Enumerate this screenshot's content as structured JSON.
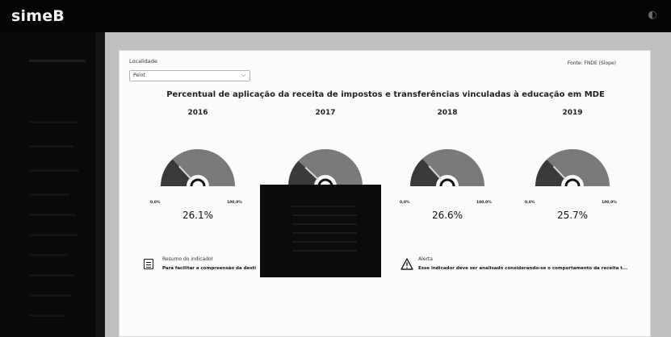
{
  "app": {
    "logo": "simeB",
    "toggle_icon": "half-moon-icon"
  },
  "sidebar": {
    "items": [
      {
        "label": ""
      },
      {
        "label": ""
      },
      {
        "label": ""
      },
      {
        "label": ""
      },
      {
        "label": ""
      },
      {
        "label": ""
      },
      {
        "label": ""
      },
      {
        "label": ""
      },
      {
        "label": ""
      },
      {
        "label": ""
      }
    ]
  },
  "filter": {
    "label": "Localidade",
    "selected": "Pelot"
  },
  "source": "Fonte: FNDE (Siope)",
  "title": "Percentual de aplicação da receita de impostos e transferências vinculadas à educação em MDE",
  "gauges": [
    {
      "year": "2016",
      "value_text": "26.1%",
      "value": 26.1,
      "min": "0,0%",
      "max": "100,0%"
    },
    {
      "year": "2017",
      "value_text": "",
      "value": 24.0,
      "min": "",
      "max": ""
    },
    {
      "year": "2018",
      "value_text": "26.6%",
      "value": 26.6,
      "min": "0,0%",
      "max": "100,0%"
    },
    {
      "year": "2019",
      "value_text": "25.7%",
      "value": 25.7,
      "min": "0,0%",
      "max": "100,0%"
    }
  ],
  "summary": {
    "title": "Resumo do indicador",
    "text": "Para facilitar a compreensão da desti"
  },
  "alert": {
    "title": "Alerta",
    "text": "Esse indicador deve ser analisado considerando-se o comportamento da receita t..."
  },
  "colors": {
    "gauge_fill": "#3a3a3a",
    "gauge_track": "#7a7a7a",
    "needle": "#d8d8d8",
    "content_bg": "#bfbfbf",
    "card_bg": "#fbfbfb"
  }
}
